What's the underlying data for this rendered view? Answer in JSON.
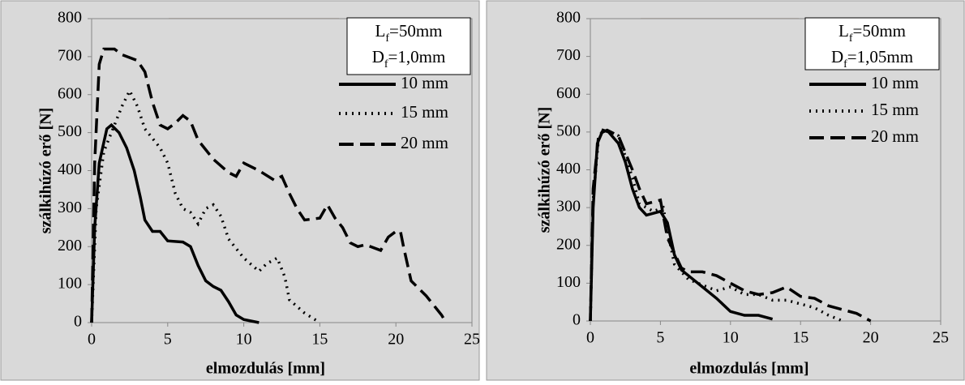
{
  "chart_data": [
    {
      "type": "line",
      "xlabel": "elmozdulás [mm]",
      "ylabel": "szálkihúzó erő [N]",
      "box_lines": [
        [
          "L",
          "f",
          "=50mm"
        ],
        [
          "D",
          "f",
          "=1,0mm"
        ]
      ],
      "xlim": [
        0,
        25
      ],
      "xticks": [
        0,
        5,
        10,
        15,
        20,
        25
      ],
      "ylim": [
        0,
        800
      ],
      "yticks": [
        0,
        100,
        200,
        300,
        400,
        500,
        600,
        700,
        800
      ],
      "series": [
        {
          "name": "10 mm",
          "color": "#000000",
          "style": "solid",
          "x": [
            0,
            0.2,
            0.5,
            1,
            1.3,
            1.8,
            2.3,
            2.8,
            3.2,
            3.5,
            4,
            4.5,
            5,
            6,
            6.5,
            7,
            7.5,
            8,
            8.5,
            9,
            9.5,
            10,
            11
          ],
          "values": [
            0,
            250,
            420,
            510,
            520,
            500,
            460,
            400,
            330,
            270,
            240,
            240,
            215,
            212,
            200,
            150,
            110,
            95,
            85,
            55,
            20,
            8,
            0
          ]
        },
        {
          "name": "15 mm",
          "color": "#000000",
          "style": "dotted",
          "x": [
            0,
            0.3,
            0.8,
            1.5,
            2,
            2.5,
            3,
            3.5,
            4.5,
            5,
            5.5,
            6,
            6.5,
            7,
            7.5,
            8,
            8.5,
            9,
            10,
            11,
            11.5,
            12.2,
            12.7,
            13,
            14,
            15
          ],
          "values": [
            0,
            300,
            450,
            520,
            570,
            610,
            570,
            510,
            460,
            420,
            340,
            300,
            290,
            260,
            300,
            310,
            280,
            220,
            170,
            135,
            155,
            170,
            120,
            60,
            25,
            0
          ]
        },
        {
          "name": "20 mm",
          "color": "#000000",
          "style": "dashed",
          "x": [
            0,
            0.2,
            0.5,
            0.8,
            1.5,
            2,
            3,
            3.5,
            4,
            4.5,
            5,
            5.5,
            6,
            6.5,
            7,
            8,
            9,
            9.5,
            10,
            11,
            12,
            12.5,
            13,
            13.5,
            14,
            15,
            15.5,
            16,
            16.5,
            17,
            17.5,
            18,
            19,
            19.5,
            20,
            20.3,
            20.5,
            21,
            22,
            23,
            23.3
          ],
          "values": [
            0,
            420,
            680,
            720,
            720,
            705,
            690,
            660,
            580,
            520,
            510,
            525,
            545,
            530,
            480,
            430,
            395,
            385,
            420,
            400,
            375,
            385,
            340,
            300,
            270,
            275,
            310,
            275,
            250,
            210,
            200,
            205,
            190,
            225,
            240,
            240,
            200,
            110,
            70,
            20,
            0
          ]
        }
      ]
    },
    {
      "type": "line",
      "xlabel": "elmozdulás [mm]",
      "ylabel": "szálkihúzó erő [N]",
      "box_lines": [
        [
          "L",
          "f",
          "=50mm"
        ],
        [
          "D",
          "f",
          "=1,05mm"
        ]
      ],
      "xlim": [
        0,
        25
      ],
      "xticks": [
        0,
        5,
        10,
        15,
        20,
        25
      ],
      "ylim": [
        0,
        800
      ],
      "yticks": [
        0,
        100,
        200,
        300,
        400,
        500,
        600,
        700,
        800
      ],
      "series": [
        {
          "name": "10 mm",
          "color": "#000000",
          "style": "solid",
          "x": [
            0,
            0.2,
            0.5,
            0.9,
            1.3,
            2,
            2.5,
            3,
            3.5,
            4,
            5,
            5.5,
            6,
            6.5,
            7,
            8,
            9,
            10,
            11,
            12,
            13
          ],
          "values": [
            0,
            300,
            470,
            505,
            500,
            470,
            420,
            350,
            300,
            280,
            290,
            260,
            175,
            135,
            120,
            90,
            60,
            25,
            15,
            15,
            5
          ]
        },
        {
          "name": "15 mm",
          "color": "#000000",
          "style": "dotted",
          "x": [
            0,
            0.2,
            0.6,
            1,
            2,
            3,
            3.5,
            4.5,
            5.2,
            5.5,
            6,
            7,
            8,
            9,
            10,
            11,
            12,
            13,
            14,
            15,
            16,
            17,
            18
          ],
          "values": [
            0,
            320,
            490,
            505,
            490,
            380,
            310,
            290,
            300,
            240,
            150,
            110,
            95,
            80,
            90,
            70,
            70,
            55,
            55,
            45,
            35,
            15,
            0
          ]
        },
        {
          "name": "20 mm",
          "color": "#000000",
          "style": "dashed",
          "x": [
            0,
            0.2,
            0.6,
            1.2,
            2,
            3,
            3.5,
            4,
            5,
            5.5,
            6.5,
            7,
            8,
            9,
            10,
            11,
            12,
            13,
            14,
            15,
            16,
            17,
            18,
            19,
            20
          ],
          "values": [
            0,
            350,
            495,
            505,
            490,
            400,
            350,
            310,
            320,
            220,
            140,
            130,
            130,
            120,
            100,
            80,
            70,
            75,
            90,
            65,
            60,
            40,
            30,
            20,
            0
          ]
        }
      ]
    }
  ]
}
